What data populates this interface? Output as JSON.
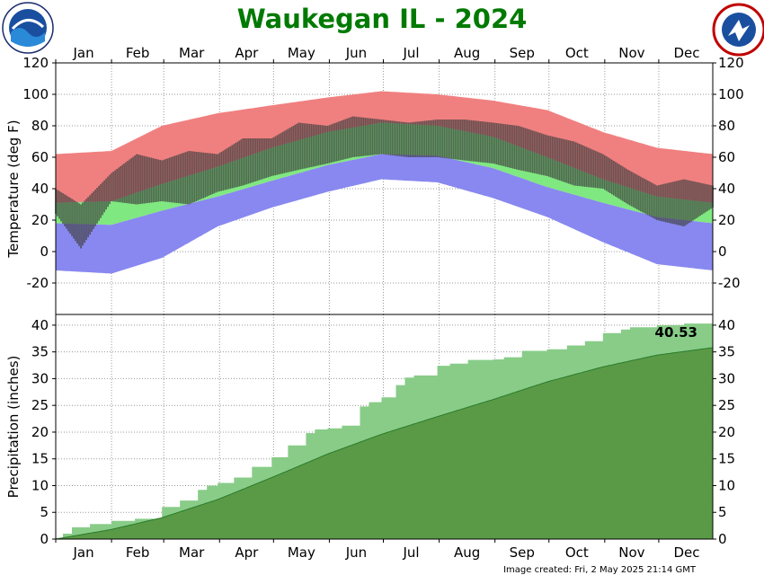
{
  "title": "Waukegan IL - 2024",
  "footer": "Image created: Fri, 2 May 2025 21:14 GMT",
  "logos": {
    "left": "noaa-logo",
    "right": "national-weather-service-logo"
  },
  "colors": {
    "title": "#007a00",
    "record_high": "#f08080",
    "normal_band": "#80e880",
    "record_low": "#8888f0",
    "observed": "#404040",
    "precip_observed": "#88cc88",
    "precip_normal": "#5a9a46"
  },
  "chart_data": [
    {
      "type": "bar",
      "title": "Waukegan IL - 2024",
      "ylabel": "Temperature (deg F)",
      "ylim": [
        -40,
        120
      ],
      "yticks": [
        -20,
        0,
        20,
        40,
        60,
        80,
        100,
        120
      ],
      "months": [
        "Jan",
        "Feb",
        "Mar",
        "Apr",
        "May",
        "Jun",
        "Jul",
        "Aug",
        "Sep",
        "Oct",
        "Nov",
        "Dec"
      ],
      "grid": true,
      "series": [
        {
          "role": "record_high",
          "x": [
            1,
            32,
            60,
            91,
            121,
            152,
            182,
            213,
            244,
            274,
            305,
            335,
            366
          ],
          "values": [
            62,
            64,
            80,
            88,
            93,
            98,
            102,
            100,
            96,
            90,
            76,
            66,
            62
          ]
        },
        {
          "role": "normal_high",
          "x": [
            1,
            32,
            60,
            91,
            121,
            152,
            182,
            213,
            244,
            274,
            305,
            335,
            366
          ],
          "values": [
            31,
            32,
            43,
            54,
            66,
            76,
            82,
            80,
            73,
            60,
            46,
            35,
            31
          ]
        },
        {
          "role": "normal_low",
          "x": [
            1,
            32,
            60,
            91,
            121,
            152,
            182,
            213,
            244,
            274,
            305,
            335,
            366
          ],
          "values": [
            18,
            17,
            26,
            35,
            45,
            55,
            62,
            61,
            53,
            41,
            31,
            22,
            18
          ]
        },
        {
          "role": "record_low",
          "x": [
            1,
            32,
            60,
            91,
            121,
            152,
            182,
            213,
            244,
            274,
            305,
            335,
            366
          ],
          "values": [
            -12,
            -14,
            -4,
            16,
            28,
            38,
            46,
            44,
            34,
            22,
            6,
            -8,
            -12
          ]
        },
        {
          "role": "observed_high",
          "x": [
            1,
            15,
            32,
            46,
            60,
            75,
            91,
            105,
            121,
            136,
            152,
            166,
            182,
            197,
            213,
            228,
            244,
            258,
            274,
            289,
            305,
            319,
            335,
            350,
            366
          ],
          "values": [
            40,
            30,
            50,
            62,
            58,
            64,
            62,
            72,
            72,
            82,
            80,
            86,
            84,
            82,
            84,
            84,
            82,
            80,
            74,
            70,
            62,
            52,
            42,
            46,
            42
          ]
        },
        {
          "role": "observed_low",
          "x": [
            1,
            15,
            32,
            46,
            60,
            75,
            91,
            105,
            121,
            136,
            152,
            166,
            182,
            197,
            213,
            228,
            244,
            258,
            274,
            289,
            305,
            319,
            335,
            350,
            366
          ],
          "values": [
            24,
            2,
            32,
            30,
            32,
            30,
            38,
            42,
            48,
            52,
            56,
            60,
            62,
            60,
            60,
            58,
            56,
            52,
            48,
            42,
            40,
            30,
            20,
            16,
            28
          ]
        }
      ]
    },
    {
      "type": "area",
      "ylabel": "Precipitation (inches)",
      "ylim": [
        0,
        42
      ],
      "yticks": [
        0,
        5,
        10,
        15,
        20,
        25,
        30,
        35,
        40
      ],
      "months": [
        "Jan",
        "Feb",
        "Mar",
        "Apr",
        "May",
        "Jun",
        "Jul",
        "Aug",
        "Sep",
        "Oct",
        "Nov",
        "Dec"
      ],
      "total_label": "40.53",
      "grid": true,
      "series": [
        {
          "role": "observed_cumulative",
          "x": [
            1,
            5,
            10,
            20,
            32,
            45,
            60,
            70,
            80,
            85,
            91,
            100,
            110,
            121,
            130,
            140,
            145,
            152,
            160,
            170,
            175,
            182,
            190,
            195,
            200,
            213,
            220,
            230,
            244,
            250,
            260,
            274,
            285,
            295,
            305,
            315,
            320,
            335,
            350,
            366
          ],
          "values": [
            0.2,
            1.0,
            2.2,
            2.8,
            3.4,
            3.8,
            6.0,
            7.2,
            9.2,
            10.0,
            10.5,
            11.5,
            13.5,
            15.3,
            17.5,
            19.8,
            20.5,
            20.7,
            21.2,
            24.8,
            25.6,
            26.5,
            28.8,
            30.2,
            30.6,
            32.4,
            32.8,
            33.5,
            33.6,
            34.0,
            35.2,
            35.5,
            36.2,
            37.0,
            38.5,
            39.2,
            39.6,
            40.0,
            40.3,
            40.53
          ]
        },
        {
          "role": "normal_cumulative",
          "x": [
            1,
            32,
            60,
            91,
            121,
            152,
            182,
            213,
            244,
            274,
            305,
            335,
            366
          ],
          "values": [
            0,
            1.8,
            4.0,
            7.4,
            11.5,
            15.9,
            19.6,
            22.9,
            26.1,
            29.4,
            32.2,
            34.4,
            35.8
          ]
        }
      ]
    }
  ]
}
